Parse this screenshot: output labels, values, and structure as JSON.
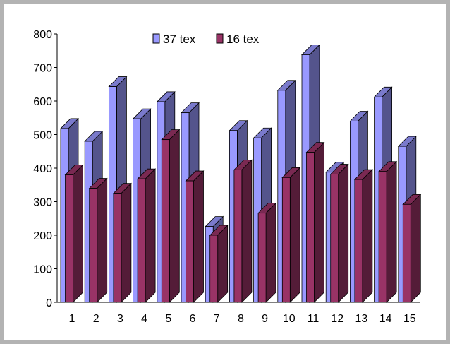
{
  "chart_data": {
    "type": "bar",
    "title": "",
    "xlabel": "",
    "ylabel": "",
    "categories": [
      "1",
      "2",
      "3",
      "4",
      "5",
      "6",
      "7",
      "8",
      "9",
      "10",
      "11",
      "12",
      "13",
      "14",
      "15"
    ],
    "series": [
      {
        "name": "37 tex",
        "color": "#9999ff",
        "values": [
          518,
          480,
          643,
          547,
          598,
          565,
          226,
          512,
          490,
          632,
          738,
          388,
          540,
          612,
          465
        ]
      },
      {
        "name": "16 tex",
        "color": "#993366",
        "values": [
          380,
          340,
          325,
          368,
          485,
          362,
          200,
          395,
          266,
          372,
          447,
          382,
          366,
          390,
          292
        ]
      }
    ],
    "ylim": [
      0,
      800
    ],
    "yticks": [
      "0",
      "100",
      "200",
      "300",
      "400",
      "500",
      "600",
      "700",
      "800"
    ],
    "grid": false,
    "legend_position": "top"
  }
}
